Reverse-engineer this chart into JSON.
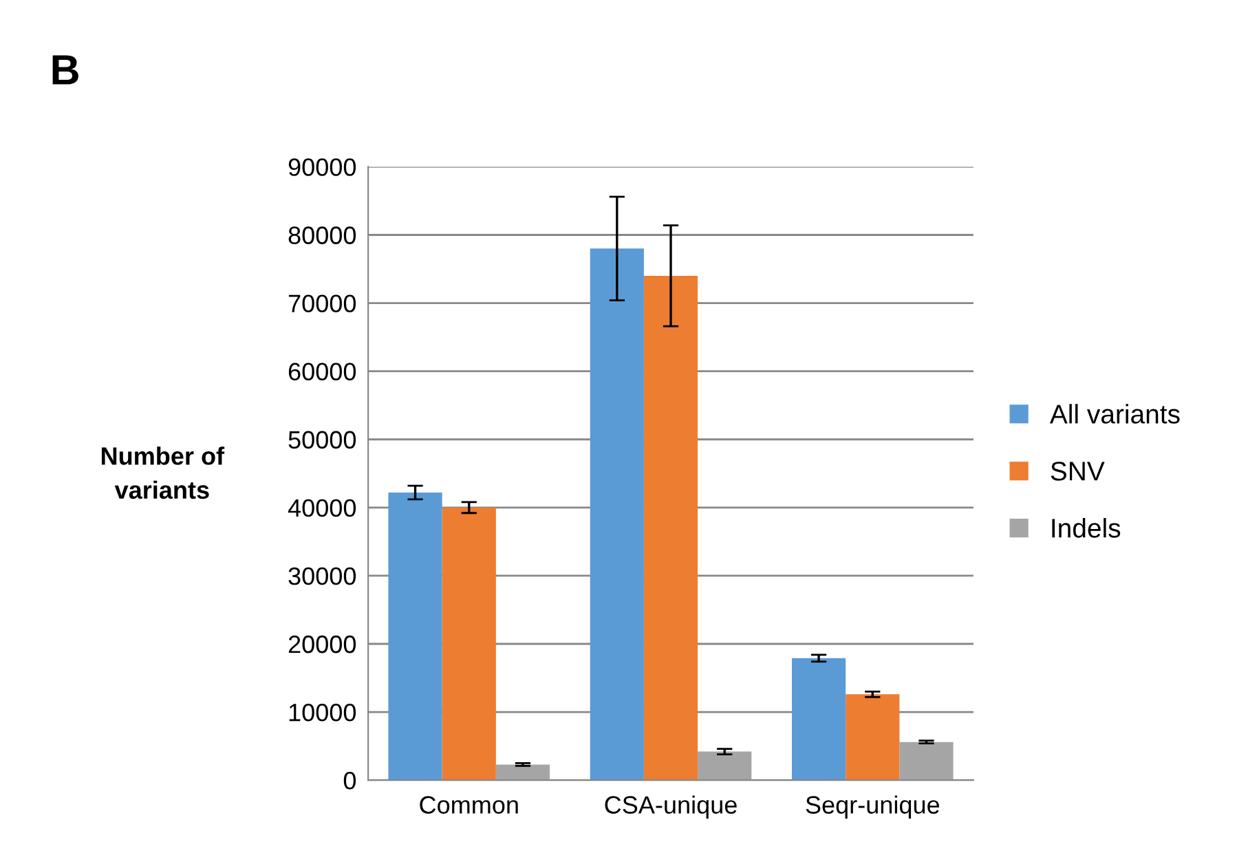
{
  "chart_data": {
    "type": "bar",
    "title": "B",
    "ylabel": "Number of\nvariants",
    "categories": [
      "Common",
      "CSA-unique",
      "Seqr-unique"
    ],
    "series": [
      {
        "name": "All variants",
        "color": "#5b9bd5",
        "values": [
          42200,
          78000,
          17900
        ],
        "errors": [
          1000,
          7600,
          500
        ]
      },
      {
        "name": "SNV",
        "color": "#ed7d31",
        "values": [
          40000,
          74000,
          12600
        ],
        "errors": [
          800,
          7400,
          400
        ]
      },
      {
        "name": "Indels",
        "color": "#a5a5a5",
        "values": [
          2300,
          4200,
          5600
        ],
        "errors": [
          200,
          400,
          200
        ]
      }
    ],
    "ylim": [
      0,
      90000
    ],
    "yticks": [
      0,
      10000,
      20000,
      30000,
      40000,
      50000,
      60000,
      70000,
      80000,
      90000
    ],
    "grid": "y",
    "legend": "right"
  }
}
